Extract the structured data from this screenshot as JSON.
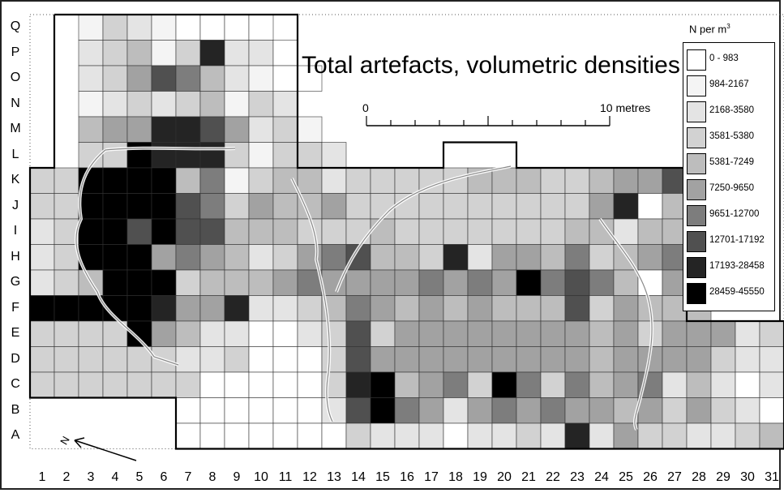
{
  "title": "Total artefacts, volumetric densities",
  "legend": {
    "title": "N per m",
    "title_sup": "3",
    "classes": [
      {
        "label": "0 -  983",
        "color": "#ffffff"
      },
      {
        "label": "984-2167",
        "color": "#f4f4f4"
      },
      {
        "label": "2168-3580",
        "color": "#e4e4e4"
      },
      {
        "label": "3581-5380",
        "color": "#d2d2d2"
      },
      {
        "label": "5381-7249",
        "color": "#bdbdbd"
      },
      {
        "label": "7250-9650",
        "color": "#a2a2a2"
      },
      {
        "label": "9651-12700",
        "color": "#7d7d7d"
      },
      {
        "label": "12701-17192",
        "color": "#505050"
      },
      {
        "label": "17193-28458",
        "color": "#242424"
      },
      {
        "label": "28459-45550",
        "color": "#000000"
      }
    ]
  },
  "scale_bar": {
    "start_label": "0",
    "end_label": "10 metres"
  },
  "north_label": "N",
  "columns": [
    "1",
    "2",
    "3",
    "4",
    "5",
    "6",
    "7",
    "8",
    "9",
    "10",
    "11",
    "12",
    "13",
    "14",
    "15",
    "16",
    "17",
    "18",
    "19",
    "20",
    "21",
    "22",
    "23",
    "24",
    "25",
    "26",
    "27",
    "28",
    "29",
    "30",
    "31"
  ],
  "rows": [
    "Q",
    "P",
    "O",
    "N",
    "M",
    "L",
    "K",
    "J",
    "I",
    "H",
    "G",
    "F",
    "E",
    "D",
    "C",
    "B",
    "A"
  ],
  "grid_classes": {
    "Q": "..13210000.......................",
    "P": "..234138220.......................",
    "O": "..2357642100.......................",
    "N": "..123234132........................",
    "M": "..4558875231.......................",
    "L": "..33988831332.........................2......",
    "K": "33999946134423333344433455758",
    "J": "339999763544533333333335804566",
    "I": "239979774443334333333344244",
    "H": "2399956542356744382554634563",
    "G": "2349993444565555656596764052",
    "F": "9999985582234654545444735444",
    "E": "33339542200237355555555453555233",
    "D": "33333322300037555555555455553223",
    "C": "3333333000003894563963645624202",
    "B": "......00000027965256565545353202",
    "A": "......00000003222022328253322343"
  }
}
